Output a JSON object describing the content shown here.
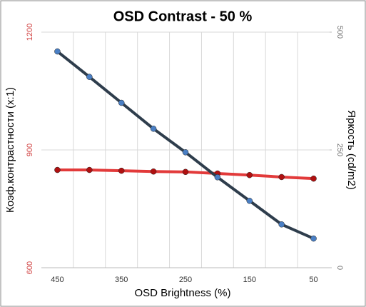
{
  "chart_data": {
    "type": "line",
    "title": "OSD Contrast - 50 %",
    "x_label": "OSD Brightness (%)",
    "y_label": "Коэф.контрастности (x:1)",
    "y2_label": "Яркость (cd/m2)",
    "categories": [
      "450",
      null,
      "350",
      null,
      "250",
      null,
      "150",
      null,
      "50"
    ],
    "series": [
      {
        "color": "#e23a3a",
        "marker_color": "#b01010",
        "values": [
          849,
          849,
          847,
          845,
          844,
          840,
          836,
          831,
          827
        ]
      },
      {
        "color": "#2e3d4c",
        "marker_color": "#4a7fc4",
        "axis": "y2",
        "values": [
          459,
          405,
          350,
          295,
          245,
          192,
          142,
          92,
          62
        ]
      }
    ],
    "ylim": [
      600,
      1200
    ],
    "yticks": [
      600,
      900,
      1200
    ],
    "y2lim": [
      0,
      500
    ],
    "y2ticks": [
      0,
      250,
      500
    ],
    "grid": true
  }
}
